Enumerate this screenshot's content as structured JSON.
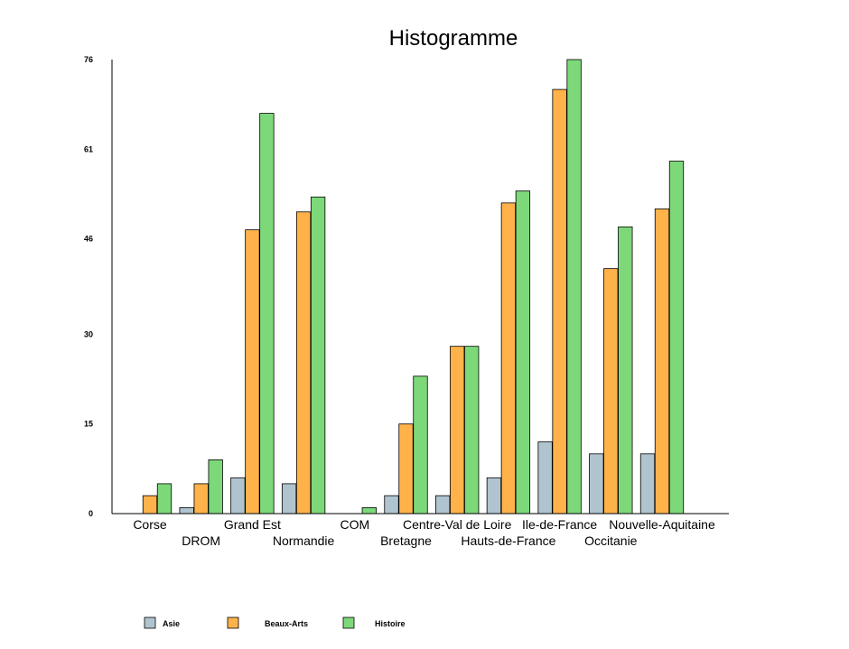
{
  "chart_data": {
    "type": "bar",
    "title": "Histogramme",
    "xlabel": "",
    "ylabel": "",
    "ylim": [
      0,
      76
    ],
    "yticks": [
      0,
      15,
      30,
      46,
      61,
      76
    ],
    "grid": false,
    "legend_position": "bottom-left",
    "categories": [
      "Corse",
      "DROM",
      "Grand Est",
      "Normandie",
      "COM",
      "Bretagne",
      "Centre-Val de Loire",
      "Hauts-de-France",
      "Ile-de-France",
      "Occitanie",
      "Nouvelle-Aquitaine"
    ],
    "series": [
      {
        "name": "Asie",
        "color": "#b0c4cf",
        "values": [
          0,
          1,
          6,
          5,
          0,
          3,
          3,
          6,
          12,
          10,
          10
        ]
      },
      {
        "name": "Beaux-Arts",
        "color": "#ffb24a",
        "values": [
          3,
          5,
          47.5,
          50.5,
          0,
          15,
          28,
          52,
          71,
          41,
          51
        ]
      },
      {
        "name": "Histoire",
        "color": "#7dd87a",
        "values": [
          5,
          9,
          67,
          53,
          1,
          23,
          28,
          54,
          76,
          48,
          59
        ]
      }
    ]
  }
}
